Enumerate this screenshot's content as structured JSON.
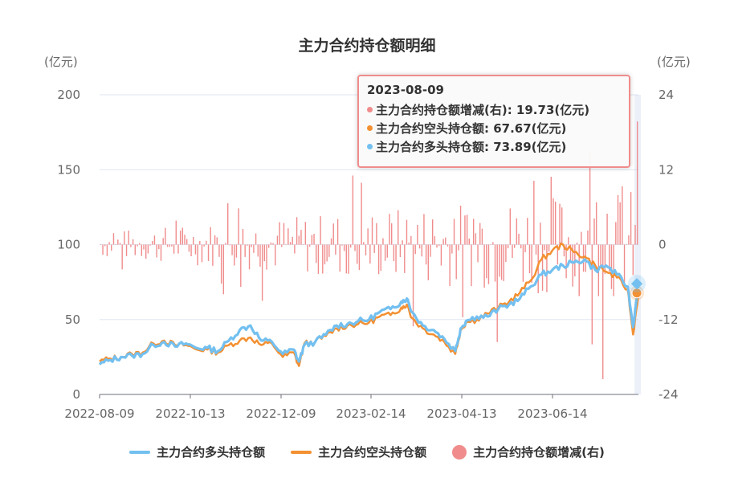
{
  "chart_data": {
    "type": "line+bar",
    "title": "主力合约持仓额明细",
    "left_axis": {
      "unit": "(亿元)",
      "ticks": [
        0,
        50,
        100,
        150,
        200
      ],
      "range": [
        0,
        200
      ]
    },
    "right_axis": {
      "unit": "(亿元)",
      "ticks": [
        -24,
        -12,
        0,
        12,
        24
      ],
      "range": [
        -24,
        24
      ]
    },
    "x_axis": {
      "ticks": [
        "2022-08-09",
        "2022-10-13",
        "2022-12-09",
        "2023-02-14",
        "2023-04-13",
        "2023-06-14"
      ],
      "range": [
        "2022-08-09",
        "2023-08-09"
      ]
    },
    "grid": true,
    "legend_position": "bottom",
    "series": [
      {
        "name": "主力合约多头持仓额",
        "type": "line",
        "axis": "left",
        "color": "#73c0f0",
        "x_frac": [
          0,
          0.02,
          0.04,
          0.06,
          0.08,
          0.1,
          0.12,
          0.14,
          0.16,
          0.18,
          0.2,
          0.22,
          0.24,
          0.26,
          0.28,
          0.3,
          0.32,
          0.34,
          0.36,
          0.37,
          0.38,
          0.4,
          0.42,
          0.44,
          0.46,
          0.48,
          0.5,
          0.52,
          0.54,
          0.56,
          0.57,
          0.58,
          0.6,
          0.62,
          0.64,
          0.66,
          0.67,
          0.68,
          0.7,
          0.72,
          0.74,
          0.76,
          0.78,
          0.8,
          0.82,
          0.84,
          0.86,
          0.88,
          0.9,
          0.92,
          0.94,
          0.96,
          0.98,
          0.99,
          1.0
        ],
        "values": [
          20,
          23,
          25,
          26,
          27,
          33,
          35,
          32,
          34,
          31,
          31,
          29,
          36,
          43,
          46,
          36,
          35,
          27,
          30,
          22,
          33,
          35,
          40,
          46,
          47,
          49,
          50,
          55,
          57,
          62,
          64,
          55,
          46,
          43,
          37,
          29,
          44,
          49,
          52,
          52,
          57,
          60,
          64,
          72,
          80,
          83,
          86,
          88,
          90,
          83,
          86,
          80,
          72,
          45,
          73.89
        ]
      },
      {
        "name": "主力合约空头持仓额",
        "type": "line",
        "axis": "left",
        "color": "#f39032",
        "x_frac": [
          0,
          0.02,
          0.04,
          0.06,
          0.08,
          0.1,
          0.12,
          0.14,
          0.16,
          0.18,
          0.2,
          0.22,
          0.24,
          0.26,
          0.28,
          0.3,
          0.32,
          0.34,
          0.36,
          0.37,
          0.38,
          0.4,
          0.42,
          0.44,
          0.46,
          0.48,
          0.5,
          0.52,
          0.54,
          0.56,
          0.57,
          0.58,
          0.6,
          0.62,
          0.64,
          0.66,
          0.67,
          0.68,
          0.7,
          0.72,
          0.74,
          0.76,
          0.78,
          0.8,
          0.82,
          0.84,
          0.86,
          0.88,
          0.9,
          0.92,
          0.94,
          0.96,
          0.98,
          0.99,
          1.0
        ],
        "values": [
          22,
          24,
          25,
          27,
          28,
          34,
          36,
          33,
          33,
          30,
          30,
          28,
          33,
          36,
          38,
          33,
          34,
          25,
          28,
          19,
          34,
          35,
          39,
          44,
          46,
          47,
          48,
          52,
          53,
          58,
          60,
          51,
          44,
          40,
          35,
          27,
          43,
          48,
          50,
          54,
          58,
          62,
          68,
          76,
          90,
          96,
          100,
          95,
          92,
          86,
          82,
          78,
          70,
          40,
          67.67
        ]
      },
      {
        "name": "主力合约持仓额增减(右)",
        "type": "bar",
        "axis": "right",
        "color": "#f08c8c",
        "note": "daily changes roughly -20 to +20, final 19.73"
      }
    ],
    "tooltip": {
      "date": "2023-08-09",
      "rows": [
        {
          "label": "主力合约持仓额增减(右)",
          "value": "19.73(亿元)",
          "color": "#f08c8c"
        },
        {
          "label": "主力合约空头持仓额",
          "value": "67.67(亿元)",
          "color": "#f39032"
        },
        {
          "label": "主力合约多头持仓额",
          "value": "73.89(亿元)",
          "color": "#73c0f0"
        }
      ]
    }
  },
  "ui": {
    "title": "主力合约持仓额明细",
    "unit_left": "(亿元)",
    "unit_right": "(亿元)",
    "tooltip": {
      "date": "2023-08-09",
      "row1": "主力合约持仓额增减(右): 19.73(亿元)",
      "row2": "主力合约空头持仓额: 67.67(亿元)",
      "row3": "主力合约多头持仓额: 73.89(亿元)"
    },
    "legend": {
      "long": "主力合约多头持仓额",
      "short": "主力合约空头持仓额",
      "change": "主力合约持仓额增减(右)"
    }
  }
}
